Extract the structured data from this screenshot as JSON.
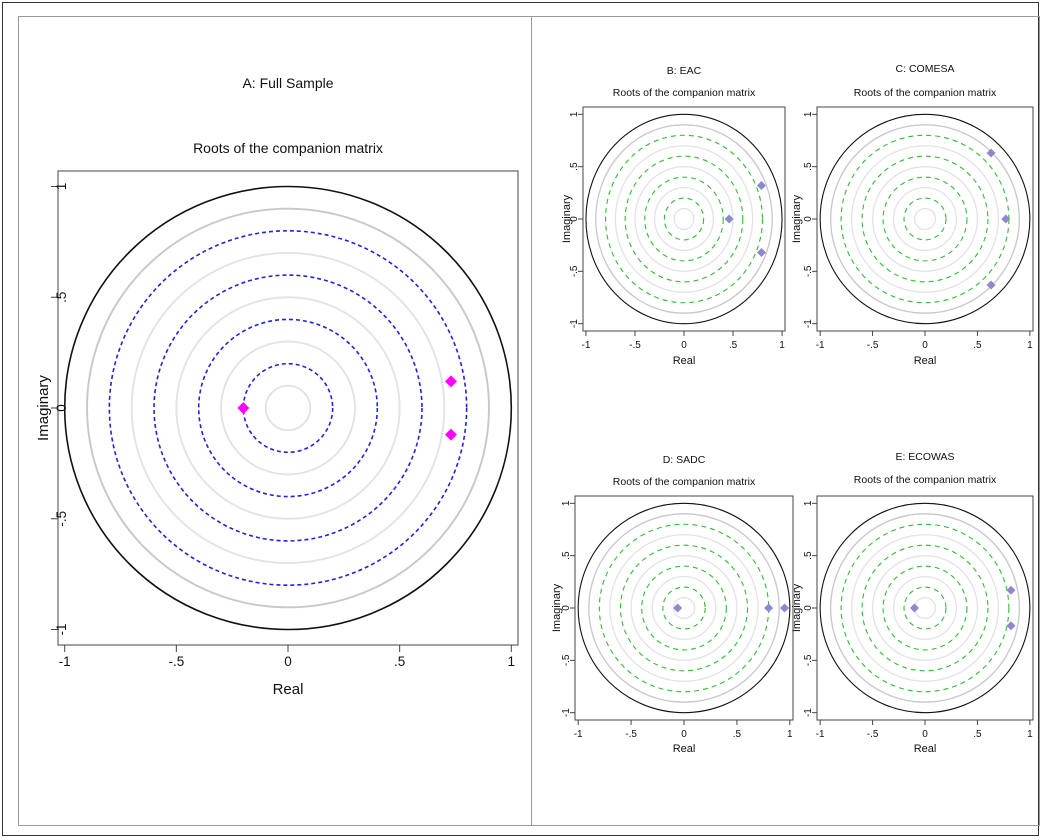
{
  "colors": {
    "plot_border": "#444444",
    "unit_circle": "#111111",
    "grey_circle": "#c8c8c8",
    "light_circle": "#e3e3e3",
    "dash_main": "#2222dd",
    "dash_small": "#33bb33",
    "marker_main": "#ff00ff",
    "marker_small": "#8f88d0"
  },
  "chart_data": [
    {
      "type": "scatter",
      "panel_title": "A: Full Sample",
      "title": "Roots of the companion matrix",
      "xlabel": "Real",
      "ylabel": "Imaginary",
      "xlim": [
        -1.03,
        1.03
      ],
      "ylim": [
        -1.07,
        1.07
      ],
      "xticks": [
        {
          "v": -1,
          "label": "-1"
        },
        {
          "v": -0.5,
          "label": "-.5"
        },
        {
          "v": 0,
          "label": "0"
        },
        {
          "v": 0.5,
          "label": ".5"
        },
        {
          "v": 1,
          "label": "1"
        }
      ],
      "yticks": [
        {
          "v": -1,
          "label": "-1"
        },
        {
          "v": -0.5,
          "label": "-.5"
        },
        {
          "v": 0,
          "label": "0"
        },
        {
          "v": 0.5,
          "label": ".5"
        },
        {
          "v": 1,
          "label": "1"
        }
      ],
      "grid": false,
      "reference_circles_solid": [
        0.1,
        0.3,
        0.5,
        0.7,
        0.9
      ],
      "reference_circles_dashed": [
        0.2,
        0.4,
        0.6,
        0.8
      ],
      "unit_circle": 1.0,
      "points": [
        {
          "x": -0.2,
          "y": 0.0
        },
        {
          "x": 0.73,
          "y": 0.12
        },
        {
          "x": 0.73,
          "y": -0.12
        }
      ]
    },
    {
      "type": "scatter",
      "panel_title": "B: EAC",
      "title": "Roots of the companion matrix",
      "xlabel": "Real",
      "ylabel": "Imaginary",
      "xlim": [
        -1.03,
        1.03
      ],
      "ylim": [
        -1.07,
        1.07
      ],
      "xticks": [
        {
          "v": -1,
          "label": "-1"
        },
        {
          "v": -0.5,
          "label": "-.5"
        },
        {
          "v": 0,
          "label": "0"
        },
        {
          "v": 0.5,
          "label": ".5"
        },
        {
          "v": 1,
          "label": "1"
        }
      ],
      "yticks": [
        {
          "v": -1,
          "label": "-1"
        },
        {
          "v": -0.5,
          "label": "-.5"
        },
        {
          "v": 0,
          "label": "0"
        },
        {
          "v": 0.5,
          "label": ".5"
        },
        {
          "v": 1,
          "label": "1"
        }
      ],
      "grid": false,
      "reference_circles_solid": [
        0.1,
        0.3,
        0.5,
        0.7,
        0.9
      ],
      "reference_circles_dashed": [
        0.2,
        0.4,
        0.6,
        0.8
      ],
      "unit_circle": 1.0,
      "points": [
        {
          "x": 0.46,
          "y": 0.0
        },
        {
          "x": 0.79,
          "y": 0.32
        },
        {
          "x": 0.79,
          "y": -0.32
        }
      ]
    },
    {
      "type": "scatter",
      "panel_title": "C: COMESA",
      "title": "Roots of the companion matrix",
      "xlabel": "Real",
      "ylabel": "Imaginary",
      "xlim": [
        -1.03,
        1.03
      ],
      "ylim": [
        -1.07,
        1.07
      ],
      "xticks": [
        {
          "v": -1,
          "label": "-1"
        },
        {
          "v": -0.5,
          "label": "-.5"
        },
        {
          "v": 0,
          "label": "0"
        },
        {
          "v": 0.5,
          "label": ".5"
        },
        {
          "v": 1,
          "label": "1"
        }
      ],
      "yticks": [
        {
          "v": -1,
          "label": "-1"
        },
        {
          "v": -0.5,
          "label": "-.5"
        },
        {
          "v": 0,
          "label": "0"
        },
        {
          "v": 0.5,
          "label": ".5"
        },
        {
          "v": 1,
          "label": "1"
        }
      ],
      "grid": false,
      "reference_circles_solid": [
        0.1,
        0.3,
        0.5,
        0.7,
        0.9
      ],
      "reference_circles_dashed": [
        0.2,
        0.4,
        0.6,
        0.8
      ],
      "unit_circle": 1.0,
      "points": [
        {
          "x": 0.63,
          "y": 0.63
        },
        {
          "x": 0.77,
          "y": 0.0
        },
        {
          "x": 0.63,
          "y": -0.63
        }
      ]
    },
    {
      "type": "scatter",
      "panel_title": "D: SADC",
      "title": "Roots of the companion matrix",
      "xlabel": "Real",
      "ylabel": "Imaginary",
      "xlim": [
        -1.03,
        1.03
      ],
      "ylim": [
        -1.07,
        1.07
      ],
      "xticks": [
        {
          "v": -1,
          "label": "-1"
        },
        {
          "v": -0.5,
          "label": "-.5"
        },
        {
          "v": 0,
          "label": "0"
        },
        {
          "v": 0.5,
          "label": ".5"
        },
        {
          "v": 1,
          "label": "1"
        }
      ],
      "yticks": [
        {
          "v": -1,
          "label": "-1"
        },
        {
          "v": -0.5,
          "label": "-.5"
        },
        {
          "v": 0,
          "label": "0"
        },
        {
          "v": 0.5,
          "label": ".5"
        },
        {
          "v": 1,
          "label": "1"
        }
      ],
      "grid": false,
      "reference_circles_solid": [
        0.1,
        0.3,
        0.5,
        0.7,
        0.9
      ],
      "reference_circles_dashed": [
        0.2,
        0.4,
        0.6,
        0.8
      ],
      "unit_circle": 1.0,
      "points": [
        {
          "x": -0.06,
          "y": 0.0
        },
        {
          "x": 0.8,
          "y": 0.0
        },
        {
          "x": 0.95,
          "y": 0.0
        }
      ]
    },
    {
      "type": "scatter",
      "panel_title": "E: ECOWAS",
      "title": "Roots of the companion matrix",
      "xlabel": "Real",
      "ylabel": "Imaginary",
      "xlim": [
        -1.03,
        1.03
      ],
      "ylim": [
        -1.07,
        1.07
      ],
      "xticks": [
        {
          "v": -1,
          "label": "-1"
        },
        {
          "v": -0.5,
          "label": "-.5"
        },
        {
          "v": 0,
          "label": "0"
        },
        {
          "v": 0.5,
          "label": ".5"
        },
        {
          "v": 1,
          "label": "1"
        }
      ],
      "yticks": [
        {
          "v": -1,
          "label": "-1"
        },
        {
          "v": -0.5,
          "label": "-.5"
        },
        {
          "v": 0,
          "label": "0"
        },
        {
          "v": 0.5,
          "label": ".5"
        },
        {
          "v": 1,
          "label": "1"
        }
      ],
      "grid": false,
      "reference_circles_solid": [
        0.1,
        0.3,
        0.5,
        0.7,
        0.9
      ],
      "reference_circles_dashed": [
        0.2,
        0.4,
        0.6,
        0.8
      ],
      "unit_circle": 1.0,
      "points": [
        {
          "x": -0.1,
          "y": 0.0
        },
        {
          "x": 0.82,
          "y": 0.17
        },
        {
          "x": 0.82,
          "y": -0.17
        }
      ]
    }
  ]
}
